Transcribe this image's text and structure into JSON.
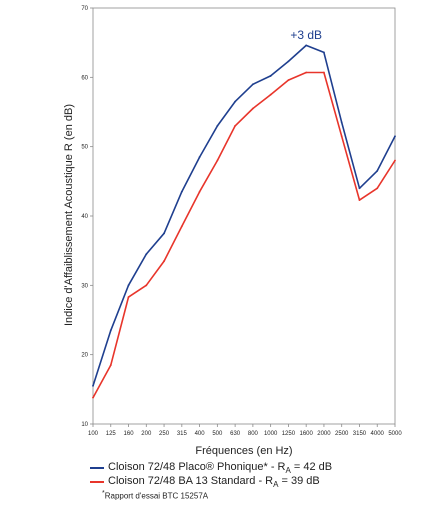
{
  "chart_data": {
    "type": "line",
    "xlabel": "Fréquences (en Hz)",
    "ylabel": "Indice d'Affaiblissement Acoustique R (en dB)",
    "x": [
      "100",
      "125",
      "160",
      "200",
      "250",
      "315",
      "400",
      "500",
      "630",
      "800",
      "1000",
      "1250",
      "1600",
      "2000",
      "2500",
      "3150",
      "4000",
      "5000"
    ],
    "ylim": [
      10,
      70
    ],
    "yticks": [
      "10",
      "20",
      "30",
      "40",
      "50",
      "60",
      "70"
    ],
    "grid": false,
    "series": [
      {
        "name": "Cloison 72/48 Placo® Phonique* - RA = 42 dB",
        "color": "#1f3f8f",
        "values": [
          15.5,
          23.5,
          30,
          34.5,
          37.5,
          43.5,
          48.5,
          53,
          56.5,
          59,
          60.2,
          62.3,
          64.6,
          63.6,
          53.5,
          44,
          46.5,
          51.5
        ]
      },
      {
        "name": "Cloison 72/48 BA 13 Standard - RA = 39 dB",
        "color": "#e8352b",
        "values": [
          13.8,
          18.5,
          28.3,
          30,
          33.5,
          38.5,
          43.5,
          48,
          53,
          55.5,
          57.5,
          59.6,
          60.7,
          60.7,
          51.5,
          42.3,
          44,
          48
        ]
      }
    ],
    "annotations": [
      {
        "text": "+3 dB",
        "x": "1600",
        "y": 65.5,
        "color": "#1f3f8f"
      }
    ]
  },
  "legend": {
    "items": [
      {
        "prefix": "Cloison 72/48 Placo® Phonique* - R",
        "sub": "A",
        "suffix": " = 42 dB",
        "color": "#1f3f8f"
      },
      {
        "prefix": "Cloison 72/48 BA 13 Standard - R",
        "sub": "A",
        "suffix": " = 39 dB",
        "color": "#e8352b"
      }
    ],
    "note_mark": "*",
    "note": "Rapport d'essai BTC 15257A"
  }
}
